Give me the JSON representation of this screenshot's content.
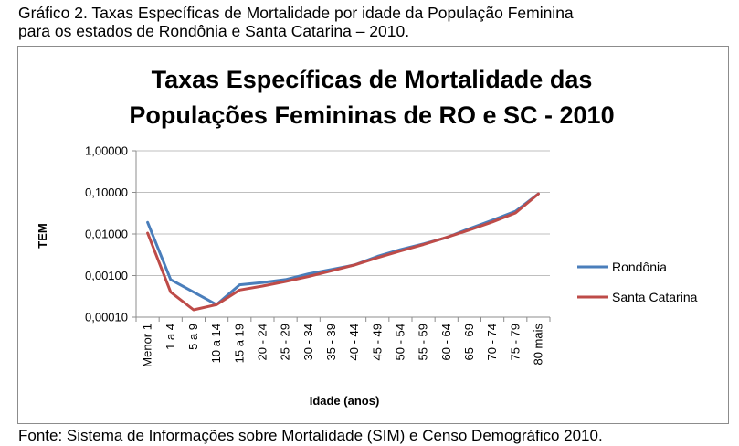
{
  "caption": {
    "line1": "Gráfico 2. Taxas Específicas de Mortalidade por idade da População Feminina",
    "line2": "para os estados de Rondônia e Santa Catarina – 2010."
  },
  "source": "Fonte: Sistema de Informações sobre Mortalidade (SIM) e Censo Demográfico 2010.",
  "colors": {
    "rondonia": "#4a7ebb",
    "santa_catarina": "#be4b48",
    "grid": "#bfbfbf",
    "axis": "#8c8c8c"
  },
  "chart_data": {
    "type": "line",
    "title_line1": "Taxas Específicas de Mortalidade das",
    "title_line2": "Populações Femininas de RO e SC - 2010",
    "xlabel": "Idade (anos)",
    "ylabel": "TEM",
    "y_scale": "log",
    "ylim": [
      0.0001,
      1.0
    ],
    "y_ticks": [
      {
        "value": 1.0,
        "label": "1,00000"
      },
      {
        "value": 0.1,
        "label": "0,10000"
      },
      {
        "value": 0.01,
        "label": "0,01000"
      },
      {
        "value": 0.001,
        "label": "0,00100"
      },
      {
        "value": 0.0001,
        "label": "0,00010"
      }
    ],
    "categories": [
      "Menor 1",
      "1 a 4",
      "5 a 9",
      "10 a 14",
      "15 a 19",
      "20 - 24",
      "25 - 29",
      "30 - 34",
      "35 - 39",
      "40 - 44",
      "45 - 49",
      "50 - 54",
      "55 - 59",
      "60 - 64",
      "65 - 69",
      "70 - 74",
      "75 - 79",
      "80 mais"
    ],
    "grid": "horizontal",
    "legend_position": "right",
    "series": [
      {
        "name": "Rondônia",
        "values": [
          0.019,
          0.0008,
          0.0004,
          0.0002,
          0.0006,
          0.00068,
          0.0008,
          0.0011,
          0.0014,
          0.0018,
          0.0029,
          0.0042,
          0.0058,
          0.0082,
          0.0135,
          0.0215,
          0.035,
          0.092
        ]
      },
      {
        "name": "Santa Catarina",
        "values": [
          0.0105,
          0.0004,
          0.00015,
          0.0002,
          0.00045,
          0.00056,
          0.00072,
          0.00095,
          0.0013,
          0.0018,
          0.0027,
          0.0039,
          0.0056,
          0.0083,
          0.0125,
          0.0195,
          0.032,
          0.092
        ]
      }
    ]
  }
}
